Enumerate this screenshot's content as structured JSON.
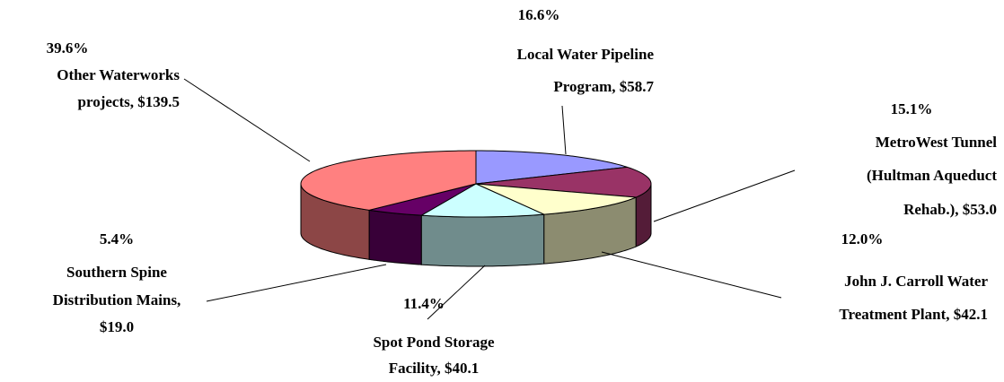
{
  "chart_data": {
    "type": "pie3d",
    "categories": [
      [
        "Local Water Pipeline",
        "Program, $58.7"
      ],
      [
        "MetroWest Tunnel",
        "(Hultman Aqueduct",
        "Rehab.), $53.0"
      ],
      [
        "John J. Carroll Water",
        "Treatment Plant, $42.1"
      ],
      [
        "Spot Pond Storage",
        "Facility, $40.1"
      ],
      [
        "Southern Spine",
        "Distribution Mains,",
        "$19.0"
      ],
      [
        "Other Waterworks",
        "projects, $139.5"
      ]
    ],
    "values": [
      16.6,
      15.1,
      12.0,
      11.4,
      5.4,
      39.6
    ],
    "value_labels": [
      "16.6%",
      "15.1%",
      "12.0%",
      "11.4%",
      "5.4%",
      "39.6%"
    ],
    "colors": [
      "#9999ff",
      "#993366",
      "#ffffcc",
      "#ccffff",
      "#660066",
      "#ff8080"
    ]
  }
}
